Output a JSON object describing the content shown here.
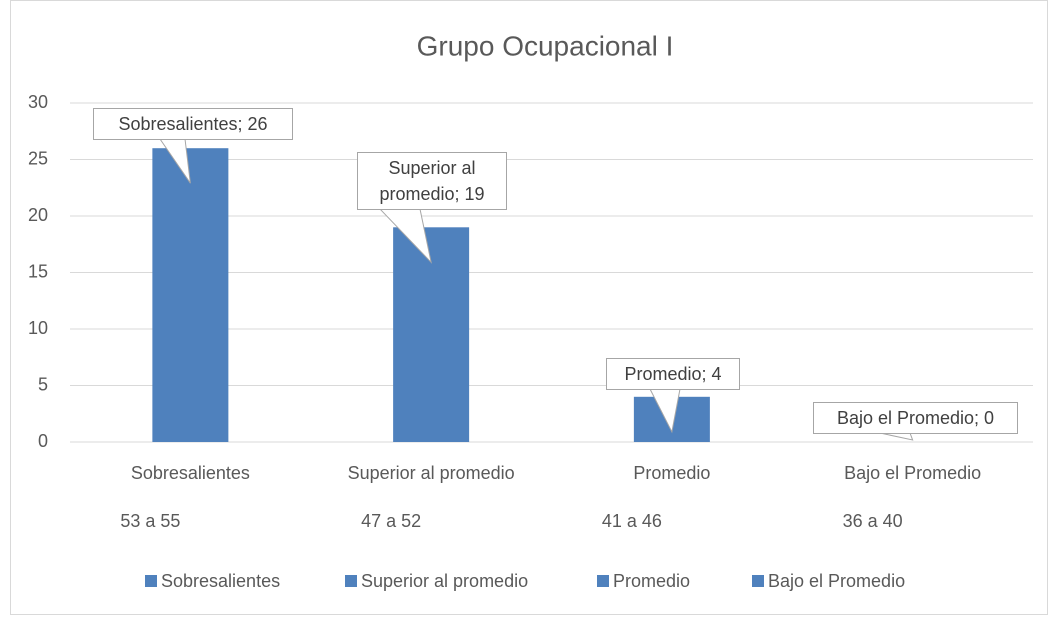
{
  "chart_data": {
    "type": "bar",
    "title": "Grupo Ocupacional I",
    "categories": [
      "Sobresalientes",
      "Superior al promedio",
      "Promedio",
      "Bajo el Promedio"
    ],
    "ranges": [
      "53 a 55",
      "47 a 52",
      "41 a 46",
      "36 a 40"
    ],
    "values": [
      26,
      19,
      4,
      0
    ],
    "value_labels": [
      "Sobresalientes; 26",
      "Superior al promedio; 19",
      "Promedio; 4",
      "Bajo el Promedio; 0"
    ],
    "color": "#4f81bd",
    "ylim": [
      0,
      30
    ],
    "yticks": [
      0,
      5,
      10,
      15,
      20,
      25,
      30
    ],
    "grid": true,
    "legend": "bottom"
  }
}
